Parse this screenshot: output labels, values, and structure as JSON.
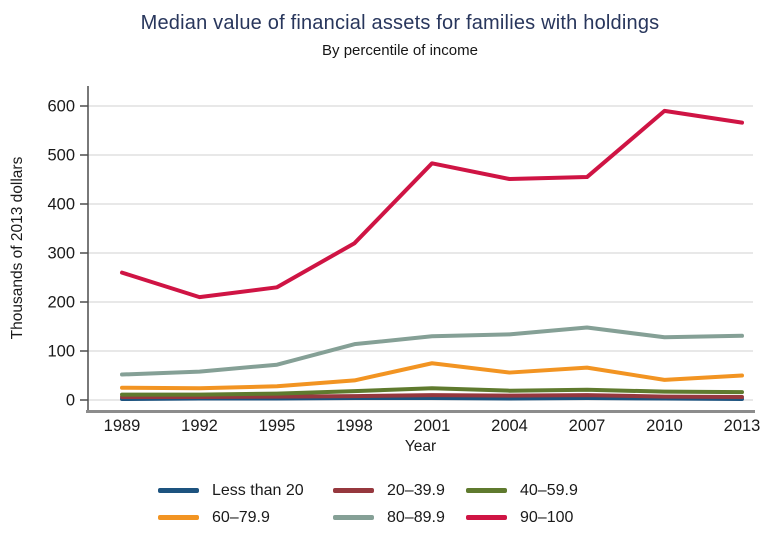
{
  "chart_data": {
    "type": "line",
    "title": "Median value of financial assets for families with holdings",
    "subtitle": "By percentile of income",
    "xlabel": "Year",
    "ylabel": "Thousands of 2013 dollars",
    "x": [
      1989,
      1992,
      1995,
      1998,
      2001,
      2004,
      2007,
      2010,
      2013
    ],
    "ylim": [
      0,
      600
    ],
    "yticks": [
      0,
      100,
      200,
      300,
      400,
      500,
      600
    ],
    "grid": "horizontal",
    "legend_position": "bottom",
    "legend_rows": 2,
    "colors": {
      "gridline": "#d9d9d9",
      "y_axis": "#4d4d4d",
      "x_axis": "#8c8c8c",
      "tick_text": "#1a1a1a",
      "title_text": "#28365c"
    },
    "series": [
      {
        "name": "Less than 20",
        "color": "#1d537f",
        "values": [
          2,
          3,
          3,
          4,
          4,
          3,
          4,
          3,
          2
        ]
      },
      {
        "name": "20–39.9",
        "color": "#96383e",
        "values": [
          6,
          6,
          7,
          8,
          10,
          9,
          10,
          7,
          6
        ]
      },
      {
        "name": "40–59.9",
        "color": "#5f7a2e",
        "values": [
          11,
          11,
          13,
          18,
          24,
          19,
          21,
          17,
          16
        ]
      },
      {
        "name": "60–79.9",
        "color": "#f29422",
        "values": [
          25,
          24,
          28,
          40,
          75,
          56,
          66,
          41,
          50
        ]
      },
      {
        "name": "80–89.9",
        "color": "#85a096",
        "values": [
          52,
          58,
          72,
          114,
          130,
          134,
          148,
          128,
          131
        ]
      },
      {
        "name": "90–100",
        "color": "#cf1444",
        "values": [
          260,
          210,
          230,
          320,
          483,
          451,
          455,
          590,
          566
        ]
      }
    ]
  }
}
